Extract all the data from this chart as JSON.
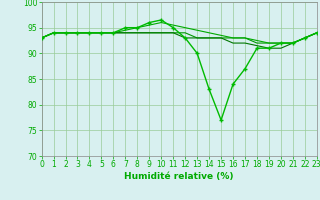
{
  "x": [
    0,
    1,
    2,
    3,
    4,
    5,
    6,
    7,
    8,
    9,
    10,
    11,
    12,
    13,
    14,
    15,
    16,
    17,
    18,
    19,
    20,
    21,
    22,
    23
  ],
  "series": [
    {
      "values": [
        93,
        94,
        94,
        94,
        94,
        94,
        94,
        95,
        95,
        96,
        96.5,
        95,
        93,
        90,
        83,
        77,
        84,
        87,
        91,
        91,
        92,
        92,
        93,
        94
      ],
      "color": "#00bb00",
      "marker": "+",
      "markersize": 3.5,
      "linewidth": 1.0,
      "zorder": 3
    },
    {
      "values": [
        93,
        94,
        94,
        94,
        94,
        94,
        94,
        94,
        94,
        94,
        94,
        94,
        94,
        93,
        93,
        93,
        93,
        93,
        92,
        92,
        92,
        92,
        93,
        94
      ],
      "color": "#009900",
      "marker": null,
      "markersize": 0,
      "linewidth": 0.8,
      "zorder": 2
    },
    {
      "values": [
        93,
        94,
        94,
        94,
        94,
        94,
        94,
        94.5,
        95,
        95.5,
        96,
        95.5,
        95,
        94.5,
        94,
        93.5,
        93,
        93,
        92.5,
        92,
        92,
        92,
        93,
        94
      ],
      "color": "#00aa00",
      "marker": null,
      "markersize": 0,
      "linewidth": 0.8,
      "zorder": 2
    },
    {
      "values": [
        93,
        94,
        94,
        94,
        94,
        94,
        94,
        94,
        94,
        94,
        94,
        94,
        93,
        93,
        93,
        93,
        92,
        92,
        91.5,
        91,
        91,
        92,
        93,
        94
      ],
      "color": "#007700",
      "marker": null,
      "markersize": 0,
      "linewidth": 0.8,
      "zorder": 2
    }
  ],
  "xlabel": "Humidité relative (%)",
  "ylim": [
    70,
    100
  ],
  "xlim": [
    0,
    23
  ],
  "yticks": [
    70,
    75,
    80,
    85,
    90,
    95,
    100
  ],
  "xticks": [
    0,
    1,
    2,
    3,
    4,
    5,
    6,
    7,
    8,
    9,
    10,
    11,
    12,
    13,
    14,
    15,
    16,
    17,
    18,
    19,
    20,
    21,
    22,
    23
  ],
  "grid_color": "#99cc99",
  "bg_color": "#d8f0f0",
  "plot_bg_color": "#d8f0f0",
  "tick_color": "#00aa00",
  "label_color": "#00aa00",
  "font_size_ticks": 5.5,
  "font_size_label": 6.5
}
